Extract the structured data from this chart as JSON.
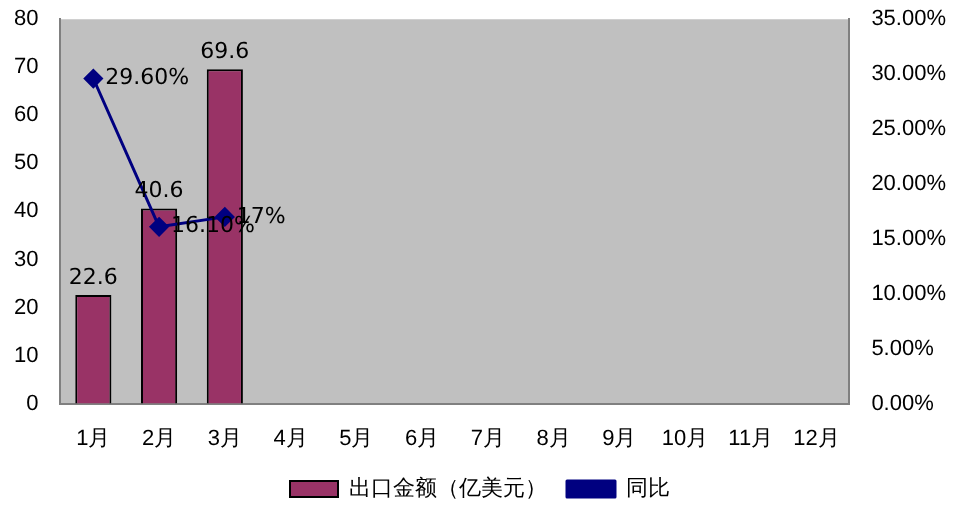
{
  "chart_data": {
    "type": "bar",
    "categories": [
      "1月",
      "2月",
      "3月",
      "4月",
      "5月",
      "6月",
      "7月",
      "8月",
      "9月",
      "10月",
      "11月",
      "12月"
    ],
    "series": [
      {
        "name": "出口金额（亿美元）",
        "color": "#993366",
        "values": [
          22.6,
          40.6,
          69.6,
          null,
          null,
          null,
          null,
          null,
          null,
          null,
          null,
          null
        ],
        "value_labels": [
          "22.6",
          "40.6",
          "69.6",
          null,
          null,
          null,
          null,
          null,
          null,
          null,
          null,
          null
        ]
      },
      {
        "name": "同比",
        "type": "line",
        "axis": "y2",
        "color": "#000080",
        "values": [
          29.6,
          16.1,
          17,
          null,
          null,
          null,
          null,
          null,
          null,
          null,
          null,
          null
        ],
        "value_labels": [
          "29.60%",
          "16.10%",
          "17%",
          null,
          null,
          null,
          null,
          null,
          null,
          null,
          null,
          null
        ]
      }
    ],
    "ylim": [
      0,
      80
    ],
    "yticks": [
      0,
      10,
      20,
      30,
      40,
      50,
      60,
      70,
      80
    ],
    "y2lim": [
      0,
      35
    ],
    "y2ticks": [
      {
        "value": 0,
        "label": "0.00%"
      },
      {
        "value": 5,
        "label": "5.00%"
      },
      {
        "value": 10,
        "label": "10.00%"
      },
      {
        "value": 15,
        "label": "15.00%"
      },
      {
        "value": 20,
        "label": "20.00%"
      },
      {
        "value": 25,
        "label": "25.00%"
      },
      {
        "value": 30,
        "label": "30.00%"
      },
      {
        "value": 35,
        "label": "35.00%"
      }
    ],
    "grid": false,
    "legend": "bottom",
    "marker": "diamond",
    "line_style": "solid"
  }
}
